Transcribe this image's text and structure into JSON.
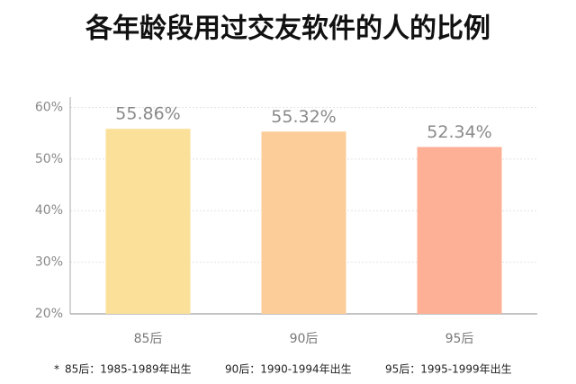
{
  "chart_data": {
    "type": "bar",
    "title": "各年龄段用过交友软件的人的比例",
    "categories": [
      "85后",
      "90后",
      "95后"
    ],
    "values": [
      55.86,
      55.32,
      52.34
    ],
    "value_labels": [
      "55.86%",
      "55.32%",
      "52.34%"
    ],
    "colors": [
      "#fbe09a",
      "#fccd98",
      "#fdb096"
    ],
    "ylim": [
      20,
      62
    ],
    "yticks": [
      {
        "value": 20,
        "label": "20%"
      },
      {
        "value": 30,
        "label": "30%"
      },
      {
        "value": 40,
        "label": "40%"
      },
      {
        "value": 50,
        "label": "50%"
      },
      {
        "value": 60,
        "label": "60%"
      }
    ],
    "grid": true,
    "footnote": [
      "*",
      "85后：1985-1989年出生",
      "90后：1990-1994年出生",
      "95后：1995-1999年出生"
    ]
  }
}
